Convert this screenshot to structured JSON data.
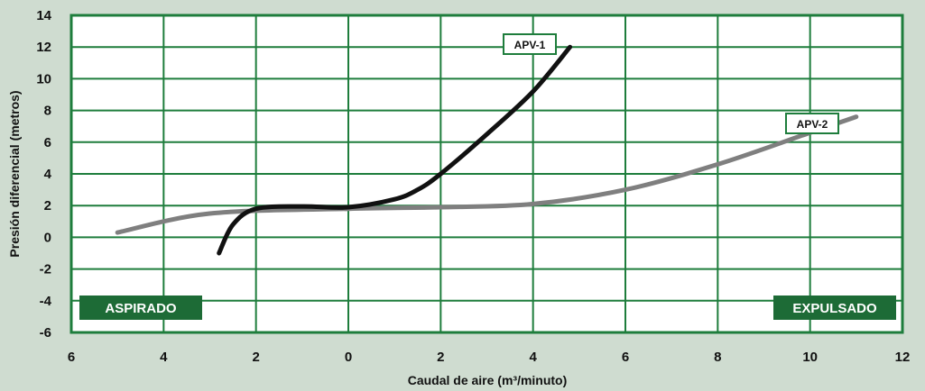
{
  "chart_data": {
    "type": "line",
    "xlabel": "Caudal de aire (m³/minuto)",
    "ylabel": "Presión diferencial (metros)",
    "x_tick_values": [
      -6,
      -4,
      -2,
      0,
      2,
      4,
      6,
      8,
      10,
      12
    ],
    "x_tick_labels": [
      "6",
      "4",
      "2",
      "0",
      "2",
      "4",
      "6",
      "8",
      "10",
      "12"
    ],
    "y_ticks": [
      14,
      12,
      10,
      8,
      6,
      4,
      2,
      0,
      -2,
      -4,
      -6
    ],
    "xlim": [
      -6,
      12
    ],
    "ylim": [
      -6,
      14
    ],
    "grid": true,
    "regions": [
      {
        "label": "ASPIRADO",
        "side": "left"
      },
      {
        "label": "EXPULSADO",
        "side": "right"
      }
    ],
    "series": [
      {
        "name": "APV-1",
        "color": "#111111",
        "points": [
          [
            -2.8,
            -1.0
          ],
          [
            -2.5,
            0.8
          ],
          [
            -2.0,
            1.8
          ],
          [
            -1.0,
            1.95
          ],
          [
            0.0,
            1.9
          ],
          [
            1.0,
            2.4
          ],
          [
            1.5,
            3.0
          ],
          [
            2.0,
            4.0
          ],
          [
            3.0,
            6.5
          ],
          [
            4.0,
            9.2
          ],
          [
            4.8,
            12.0
          ]
        ]
      },
      {
        "name": "APV-2",
        "color": "#7f7f7f",
        "points": [
          [
            -5.0,
            0.3
          ],
          [
            -3.0,
            1.5
          ],
          [
            0.0,
            1.8
          ],
          [
            2.0,
            1.9
          ],
          [
            4.0,
            2.1
          ],
          [
            6.0,
            3.0
          ],
          [
            8.0,
            4.6
          ],
          [
            10.0,
            6.6
          ],
          [
            11.0,
            7.6
          ]
        ]
      }
    ]
  }
}
